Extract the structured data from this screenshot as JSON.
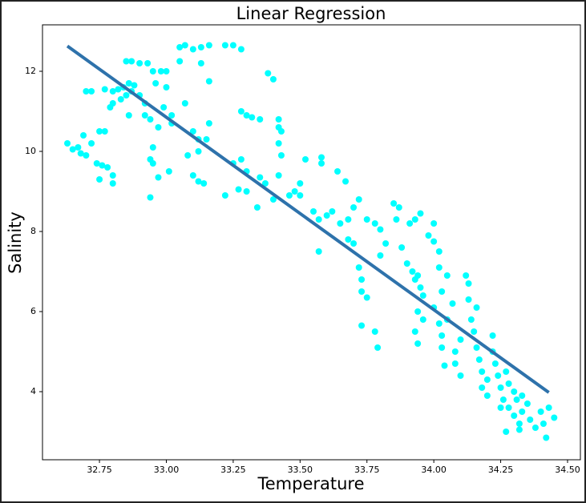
{
  "chart_data": {
    "type": "scatter",
    "title": "Linear Regression",
    "x_label": "Temperature",
    "y_label": "Salinity",
    "xlim": [
      32.537,
      34.548
    ],
    "ylim": [
      2.3,
      13.16
    ],
    "xticks": [
      {
        "value": 32.75,
        "label": "32.75"
      },
      {
        "value": 33.0,
        "label": "33.00"
      },
      {
        "value": 33.25,
        "label": "33.25"
      },
      {
        "value": 33.5,
        "label": "33.50"
      },
      {
        "value": 33.75,
        "label": "33.75"
      },
      {
        "value": 34.0,
        "label": "34.00"
      },
      {
        "value": 34.25,
        "label": "34.25"
      },
      {
        "value": 34.5,
        "label": "34.50"
      }
    ],
    "yticks": [
      4,
      6,
      8,
      10,
      12
    ],
    "points": {
      "color": "#00ffff",
      "x": [
        32.63,
        32.65,
        32.67,
        32.68,
        32.7,
        32.72,
        32.74,
        32.76,
        32.78,
        32.75,
        32.77,
        32.8,
        32.8,
        32.75,
        32.69,
        32.7,
        32.72,
        32.77,
        32.8,
        32.82,
        32.84,
        32.86,
        32.88,
        32.85,
        32.83,
        32.8,
        32.79,
        32.9,
        32.92,
        32.87,
        32.85,
        32.87,
        32.9,
        32.93,
        32.95,
        32.98,
        33.0,
        32.96,
        33.0,
        32.99,
        32.92,
        32.94,
        32.97,
        33.02,
        33.02,
        32.86,
        32.95,
        32.94,
        32.95,
        32.97,
        33.01,
        32.94,
        33.05,
        33.07,
        33.1,
        33.13,
        33.16,
        33.22,
        33.25,
        33.28,
        33.05,
        33.13,
        33.16,
        33.07,
        33.1,
        33.12,
        33.15,
        33.16,
        33.12,
        33.08,
        33.1,
        33.12,
        33.14,
        33.25,
        33.28,
        33.3,
        33.3,
        33.27,
        33.22,
        33.28,
        33.3,
        33.32,
        33.35,
        33.38,
        33.4,
        33.42,
        33.42,
        33.43,
        33.42,
        33.43,
        33.42,
        33.4,
        33.35,
        33.37,
        33.34,
        33.46,
        33.48,
        33.5,
        33.5,
        33.52,
        33.55,
        33.57,
        33.58,
        33.58,
        33.6,
        33.62,
        33.65,
        33.64,
        33.67,
        33.68,
        33.7,
        33.72,
        33.68,
        33.7,
        33.72,
        33.73,
        33.73,
        33.75,
        33.73,
        33.78,
        33.79,
        33.57,
        33.75,
        33.78,
        33.8,
        33.82,
        33.8,
        33.85,
        33.87,
        33.86,
        33.88,
        33.9,
        33.91,
        33.93,
        33.95,
        33.92,
        33.93,
        33.95,
        33.94,
        33.96,
        33.94,
        33.96,
        33.93,
        33.94,
        33.98,
        34.0,
        34.02,
        34.0,
        34.02,
        34.05,
        34.03,
        34.0,
        34.02,
        34.03,
        34.03,
        34.05,
        34.07,
        34.08,
        34.1,
        34.08,
        34.1,
        34.04,
        34.12,
        34.13,
        34.13,
        34.14,
        34.15,
        34.16,
        34.16,
        34.17,
        34.18,
        34.2,
        34.18,
        34.2,
        34.22,
        34.22,
        34.23,
        34.24,
        34.25,
        34.26,
        34.27,
        34.28,
        34.28,
        34.3,
        34.3,
        34.31,
        34.32,
        34.33,
        34.33,
        34.35,
        34.36,
        34.38,
        34.4,
        34.41,
        34.42,
        34.43,
        34.45,
        34.32,
        34.25,
        34.27
      ],
      "y": [
        10.2,
        10.05,
        10.1,
        9.95,
        9.9,
        10.2,
        9.7,
        9.65,
        9.6,
        10.5,
        10.5,
        9.4,
        9.2,
        9.3,
        10.4,
        11.5,
        11.5,
        11.55,
        11.5,
        11.55,
        11.6,
        11.7,
        11.65,
        11.4,
        11.3,
        11.2,
        11.1,
        11.4,
        11.2,
        11.5,
        12.25,
        12.25,
        12.2,
        12.2,
        12.0,
        12.0,
        12.0,
        11.7,
        11.6,
        11.1,
        10.9,
        10.8,
        10.6,
        10.7,
        10.9,
        10.9,
        10.1,
        9.8,
        9.7,
        9.35,
        9.5,
        8.85,
        12.6,
        12.65,
        12.55,
        12.6,
        12.65,
        12.65,
        12.65,
        12.55,
        12.25,
        12.2,
        11.75,
        11.2,
        10.5,
        10.3,
        10.3,
        10.7,
        10.0,
        9.9,
        9.4,
        9.25,
        9.2,
        9.7,
        9.8,
        9.5,
        9.0,
        9.05,
        8.9,
        11.0,
        10.9,
        10.85,
        10.8,
        11.95,
        11.8,
        10.8,
        10.6,
        10.5,
        10.2,
        9.9,
        9.4,
        8.8,
        9.35,
        9.2,
        8.6,
        8.9,
        9.0,
        9.2,
        8.9,
        9.8,
        8.5,
        8.3,
        9.85,
        9.7,
        8.4,
        8.5,
        8.2,
        9.5,
        9.25,
        8.3,
        8.6,
        8.8,
        7.8,
        7.7,
        7.1,
        6.8,
        6.5,
        6.35,
        5.65,
        5.5,
        5.1,
        7.5,
        8.3,
        8.2,
        8.05,
        7.7,
        7.4,
        8.7,
        8.6,
        8.3,
        7.6,
        7.2,
        8.2,
        8.3,
        8.45,
        7.0,
        6.8,
        6.6,
        6.9,
        6.4,
        6.0,
        5.8,
        5.5,
        5.2,
        7.9,
        7.75,
        7.5,
        8.2,
        7.1,
        6.9,
        6.5,
        6.1,
        5.7,
        5.4,
        5.1,
        5.8,
        6.2,
        5.0,
        5.3,
        4.7,
        4.4,
        4.65,
        6.9,
        6.7,
        6.3,
        5.8,
        5.5,
        5.1,
        6.1,
        4.8,
        4.5,
        4.3,
        4.1,
        3.9,
        5.4,
        5.0,
        4.7,
        4.4,
        4.1,
        3.8,
        4.5,
        4.2,
        3.6,
        4.0,
        3.4,
        3.8,
        3.2,
        3.5,
        3.9,
        3.7,
        3.3,
        3.1,
        3.5,
        3.2,
        2.85,
        3.6,
        3.35,
        3.05,
        3.6,
        3.0
      ]
    },
    "fit": {
      "color": "#2e72ab",
      "x": [
        32.63,
        34.43
      ],
      "y": [
        12.63,
        3.98
      ]
    }
  }
}
